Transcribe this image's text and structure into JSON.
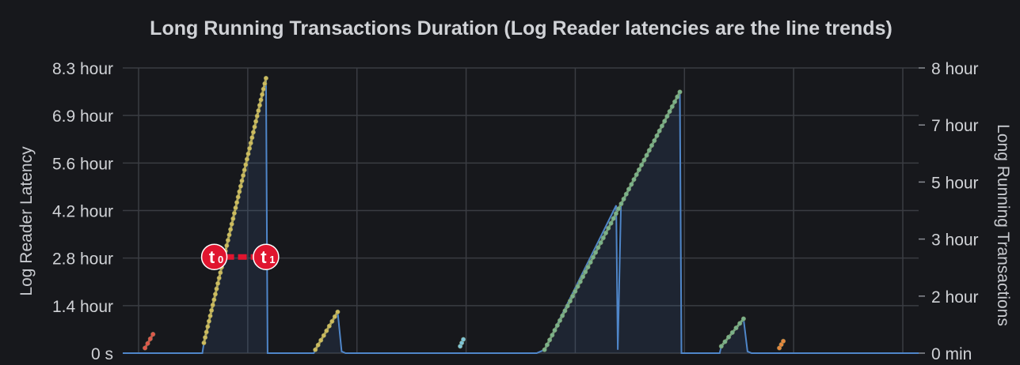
{
  "chart_data": {
    "type": "line",
    "title": "Long Running Transactions Duration (Log Reader latencies are the line trends)",
    "left_axis": {
      "label": "Log Reader Latency",
      "ticks": [
        "0 s",
        "1.4 hour",
        "2.8 hour",
        "4.2 hour",
        "5.6 hour",
        "6.9 hour",
        "8.3 hour"
      ],
      "ylim_hours": [
        0,
        8.3
      ]
    },
    "right_axis": {
      "label": "Long Running Transactions",
      "ticks": [
        "0 min",
        "2 hour",
        "3 hour",
        "5 hour",
        "7 hour",
        "8 hour"
      ],
      "ylim_hours": [
        0,
        8
      ]
    },
    "grid": true,
    "x_gridline_count": 8,
    "latency_series": {
      "color": "#4f86c9",
      "points": [
        [
          0.0,
          0.0
        ],
        [
          0.1,
          0.0
        ],
        [
          0.102,
          0.3
        ],
        [
          0.18,
          8.0
        ],
        [
          0.182,
          0.0
        ],
        [
          0.24,
          0.0
        ],
        [
          0.242,
          0.1
        ],
        [
          0.27,
          1.2
        ],
        [
          0.275,
          0.05
        ],
        [
          0.28,
          0.0
        ],
        [
          0.32,
          0.0
        ],
        [
          0.5,
          0.0
        ],
        [
          0.52,
          0.0
        ],
        [
          0.53,
          0.1
        ],
        [
          0.62,
          4.3
        ],
        [
          0.622,
          0.1
        ],
        [
          0.626,
          4.3
        ],
        [
          0.7,
          7.6
        ],
        [
          0.702,
          0.0
        ],
        [
          0.75,
          0.0
        ],
        [
          0.752,
          0.2
        ],
        [
          0.78,
          1.0
        ],
        [
          0.785,
          0.05
        ],
        [
          0.79,
          0.0
        ],
        [
          1.0,
          0.0
        ]
      ]
    },
    "transaction_series": [
      {
        "color": "#e0564a",
        "points": [
          [
            0.028,
            0.15
          ],
          [
            0.038,
            0.55
          ]
        ]
      },
      {
        "color": "#cdbb5e",
        "points": [
          [
            0.102,
            0.3
          ],
          [
            0.18,
            8.0
          ]
        ]
      },
      {
        "color": "#cdbb5e",
        "points": [
          [
            0.242,
            0.1
          ],
          [
            0.27,
            1.2
          ]
        ]
      },
      {
        "color": "#7ec4d8",
        "points": [
          [
            0.424,
            0.2
          ],
          [
            0.428,
            0.4
          ]
        ]
      },
      {
        "color": "#7bb28a",
        "points": [
          [
            0.53,
            0.1
          ],
          [
            0.7,
            7.6
          ]
        ]
      },
      {
        "color": "#7bb28a",
        "points": [
          [
            0.752,
            0.2
          ],
          [
            0.78,
            1.0
          ]
        ]
      },
      {
        "color": "#e6873c",
        "points": [
          [
            0.825,
            0.15
          ],
          [
            0.83,
            0.35
          ]
        ]
      }
    ],
    "annotation": {
      "color": "#e0152f",
      "start_label": "t",
      "start_sub": "0",
      "end_label": "t",
      "end_sub": "1",
      "x0": 0.115,
      "x1": 0.18,
      "y_hours": 2.8
    }
  }
}
